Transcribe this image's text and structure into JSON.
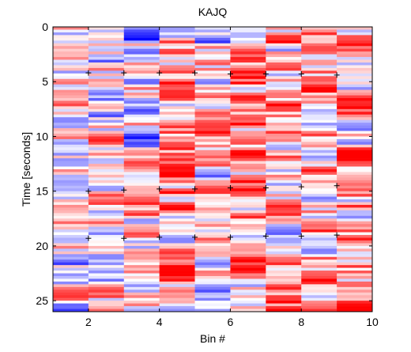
{
  "chart_data": {
    "type": "heatmap",
    "title": "KAJQ",
    "xlabel": "Bin #",
    "ylabel": "Time [seconds]",
    "xlim": [
      1,
      10
    ],
    "ylim": [
      0,
      26
    ],
    "y_reversed": true,
    "x_ticks": [
      2,
      4,
      6,
      8,
      10
    ],
    "y_ticks": [
      0,
      5,
      10,
      15,
      20,
      25
    ],
    "colormap": "blue-white-red",
    "colors": {
      "negative": "#0000ff",
      "zero": "#ffffff",
      "positive": "#ff0000"
    },
    "columns": [
      {
        "x0": 1,
        "x1": 2
      },
      {
        "x0": 2,
        "x1": 3
      },
      {
        "x0": 3,
        "x1": 4
      },
      {
        "x0": 4,
        "x1": 5
      },
      {
        "x0": 5,
        "x1": 6
      },
      {
        "x0": 6,
        "x1": 7
      },
      {
        "x0": 7,
        "x1": 8
      },
      {
        "x0": 8,
        "x1": 9
      },
      {
        "x0": 9,
        "x1": 10
      }
    ],
    "row_height_seconds": 0.25,
    "grid": false,
    "markers": {
      "symbol": "+",
      "points": [
        {
          "x": 2,
          "y": 4.2
        },
        {
          "x": 3,
          "y": 4.2
        },
        {
          "x": 4,
          "y": 4.2
        },
        {
          "x": 5,
          "y": 4.2
        },
        {
          "x": 6,
          "y": 4.3
        },
        {
          "x": 7,
          "y": 4.3
        },
        {
          "x": 8,
          "y": 4.3
        },
        {
          "x": 9,
          "y": 4.4
        },
        {
          "x": 2,
          "y": 15.0
        },
        {
          "x": 3,
          "y": 14.9
        },
        {
          "x": 4,
          "y": 14.8
        },
        {
          "x": 5,
          "y": 14.8
        },
        {
          "x": 6,
          "y": 14.7
        },
        {
          "x": 7,
          "y": 14.7
        },
        {
          "x": 8,
          "y": 14.6
        },
        {
          "x": 9,
          "y": 14.5
        },
        {
          "x": 2,
          "y": 19.3
        },
        {
          "x": 3,
          "y": 19.3
        },
        {
          "x": 4,
          "y": 19.2
        },
        {
          "x": 5,
          "y": 19.2
        },
        {
          "x": 6,
          "y": 19.2
        },
        {
          "x": 7,
          "y": 19.1
        },
        {
          "x": 8,
          "y": 19.1
        },
        {
          "x": 9,
          "y": 19.0
        }
      ]
    }
  }
}
